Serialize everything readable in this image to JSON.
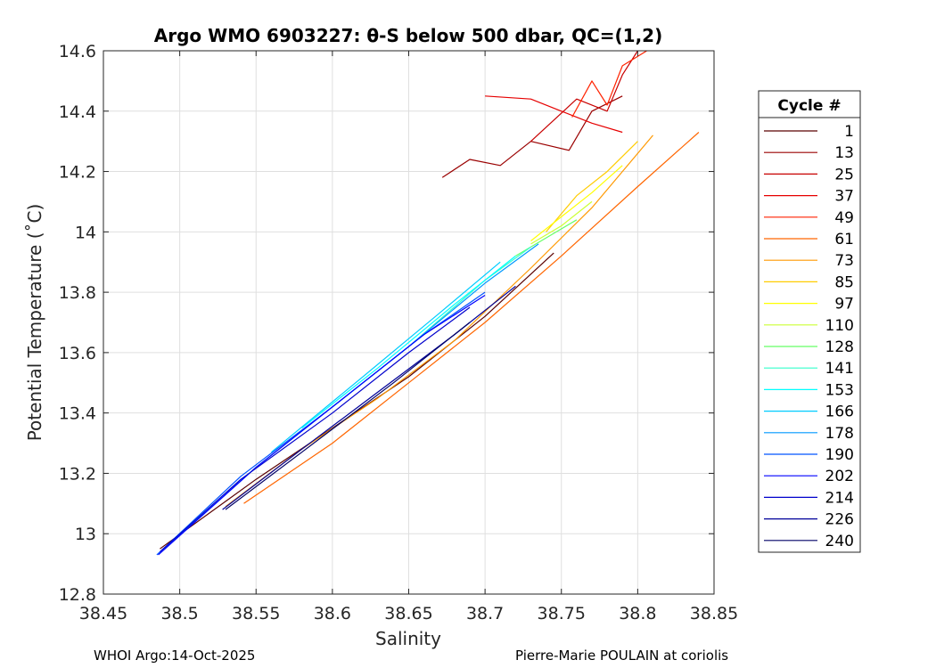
{
  "chart_data": {
    "type": "line",
    "title": "Argo WMO 6903227: θ-S below 500 dbar,  QC=(1,2)",
    "xlabel": "Salinity",
    "ylabel": "Potential Temperature (˚C)",
    "xlim": [
      38.45,
      38.85
    ],
    "ylim": [
      12.8,
      14.6
    ],
    "xticks": [
      38.45,
      38.5,
      38.55,
      38.6,
      38.65,
      38.7,
      38.75,
      38.8,
      38.85
    ],
    "xtick_labels": [
      "38.45",
      "38.5",
      "38.55",
      "38.6",
      "38.65",
      "38.7",
      "38.75",
      "38.8",
      "38.85"
    ],
    "yticks": [
      12.8,
      13,
      13.2,
      13.4,
      13.6,
      13.8,
      14,
      14.2,
      14.4,
      14.6
    ],
    "ytick_labels": [
      "12.8",
      "13",
      "13.2",
      "13.4",
      "13.6",
      "13.8",
      "14",
      "14.2",
      "14.4",
      "14.6"
    ],
    "grid": true,
    "legend": {
      "title": "Cycle #",
      "placement": "right-outside",
      "entries": [
        {
          "label": "1",
          "color": "#5a0000"
        },
        {
          "label": "13",
          "color": "#9a0000"
        },
        {
          "label": "25",
          "color": "#c80000"
        },
        {
          "label": "37",
          "color": "#e60000"
        },
        {
          "label": "49",
          "color": "#ff2200"
        },
        {
          "label": "61",
          "color": "#ff6600"
        },
        {
          "label": "73",
          "color": "#ff9900"
        },
        {
          "label": "85",
          "color": "#ffcc00"
        },
        {
          "label": "97",
          "color": "#ffff00"
        },
        {
          "label": "110",
          "color": "#ccff33"
        },
        {
          "label": "128",
          "color": "#66ff66"
        },
        {
          "label": "141",
          "color": "#33ffcc"
        },
        {
          "label": "153",
          "color": "#00ffff"
        },
        {
          "label": "166",
          "color": "#00ccff"
        },
        {
          "label": "178",
          "color": "#0099ff"
        },
        {
          "label": "190",
          "color": "#0055ff"
        },
        {
          "label": "202",
          "color": "#0000ff"
        },
        {
          "label": "214",
          "color": "#0000cc"
        },
        {
          "label": "226",
          "color": "#000099"
        },
        {
          "label": "240",
          "color": "#000066"
        }
      ]
    },
    "series": [
      {
        "name": "1",
        "color": "#5a0000",
        "x": [
          38.487,
          38.55,
          38.6,
          38.65,
          38.7,
          38.745
        ],
        "y": [
          12.95,
          13.18,
          13.35,
          13.52,
          13.72,
          13.93
        ]
      },
      {
        "name": "13",
        "color": "#9a0000",
        "x": [
          38.672,
          38.69,
          38.71,
          38.73,
          38.755,
          38.77,
          38.79
        ],
        "y": [
          14.18,
          14.24,
          14.22,
          14.3,
          14.27,
          14.4,
          14.45
        ]
      },
      {
        "name": "25",
        "color": "#c80000",
        "x": [
          38.73,
          38.76,
          38.78,
          38.79,
          38.8
        ],
        "y": [
          14.3,
          14.44,
          14.4,
          14.52,
          14.6
        ]
      },
      {
        "name": "37",
        "color": "#e60000",
        "x": [
          38.7,
          38.73,
          38.75,
          38.77,
          38.79
        ],
        "y": [
          14.45,
          14.44,
          14.4,
          14.36,
          14.33
        ]
      },
      {
        "name": "49",
        "color": "#ff2200",
        "x": [
          38.757,
          38.77,
          38.78,
          38.79,
          38.806
        ],
        "y": [
          14.38,
          14.5,
          14.42,
          14.55,
          14.6
        ]
      },
      {
        "name": "61",
        "color": "#ff6600",
        "x": [
          38.542,
          38.6,
          38.65,
          38.7,
          38.75,
          38.8,
          38.84
        ],
        "y": [
          13.1,
          13.3,
          13.5,
          13.7,
          13.92,
          14.15,
          14.33
        ]
      },
      {
        "name": "73",
        "color": "#ff9900",
        "x": [
          38.53,
          38.58,
          38.63,
          38.68,
          38.73,
          38.77,
          38.81
        ],
        "y": [
          13.09,
          13.28,
          13.45,
          13.64,
          13.88,
          14.08,
          14.32
        ]
      },
      {
        "name": "85",
        "color": "#ffcc00",
        "x": [
          38.74,
          38.76,
          38.78,
          38.8
        ],
        "y": [
          14.0,
          14.12,
          14.2,
          14.3
        ]
      },
      {
        "name": "97",
        "color": "#ffff00",
        "x": [
          38.73,
          38.75,
          38.77,
          38.79
        ],
        "y": [
          13.97,
          14.05,
          14.13,
          14.22
        ]
      },
      {
        "name": "110",
        "color": "#ccff33",
        "x": [
          38.73,
          38.75,
          38.77
        ],
        "y": [
          13.96,
          14.02,
          14.1
        ]
      },
      {
        "name": "128",
        "color": "#66ff66",
        "x": [
          38.72,
          38.74,
          38.76
        ],
        "y": [
          13.92,
          13.98,
          14.04
        ]
      },
      {
        "name": "141",
        "color": "#33ffcc",
        "x": [
          38.6,
          38.65,
          38.7,
          38.73
        ],
        "y": [
          13.42,
          13.62,
          13.84,
          13.95
        ]
      },
      {
        "name": "153",
        "color": "#00ffff",
        "x": [
          38.58,
          38.63,
          38.68,
          38.72
        ],
        "y": [
          13.35,
          13.55,
          13.76,
          13.92
        ]
      },
      {
        "name": "166",
        "color": "#00ccff",
        "x": [
          38.56,
          38.62,
          38.67,
          38.71
        ],
        "y": [
          13.27,
          13.52,
          13.73,
          13.9
        ]
      },
      {
        "name": "178",
        "color": "#0099ff",
        "x": [
          38.49,
          38.55,
          38.6,
          38.65,
          38.7,
          38.735
        ],
        "y": [
          12.95,
          13.22,
          13.42,
          13.62,
          13.83,
          13.96
        ]
      },
      {
        "name": "190",
        "color": "#0055ff",
        "x": [
          38.485,
          38.54,
          38.6,
          38.66,
          38.7
        ],
        "y": [
          12.93,
          13.19,
          13.42,
          13.66,
          13.8
        ]
      },
      {
        "name": "202",
        "color": "#0000ff",
        "x": [
          38.486,
          38.55,
          38.61,
          38.66,
          38.7
        ],
        "y": [
          12.93,
          13.22,
          13.46,
          13.66,
          13.79
        ]
      },
      {
        "name": "214",
        "color": "#0000cc",
        "x": [
          38.487,
          38.54,
          38.6,
          38.65,
          38.69
        ],
        "y": [
          12.94,
          13.18,
          13.4,
          13.6,
          13.75
        ]
      },
      {
        "name": "226",
        "color": "#000099",
        "x": [
          38.528,
          38.58,
          38.63,
          38.68,
          38.72
        ],
        "y": [
          13.08,
          13.28,
          13.47,
          13.66,
          13.82
        ]
      },
      {
        "name": "240",
        "color": "#000066",
        "x": [
          38.53,
          38.58,
          38.64,
          38.69
        ],
        "y": [
          13.08,
          13.27,
          13.5,
          13.7
        ]
      }
    ]
  },
  "footer": {
    "left": "WHOI Argo:14-Oct-2025",
    "right": "Pierre-Marie POULAIN at coriolis"
  }
}
